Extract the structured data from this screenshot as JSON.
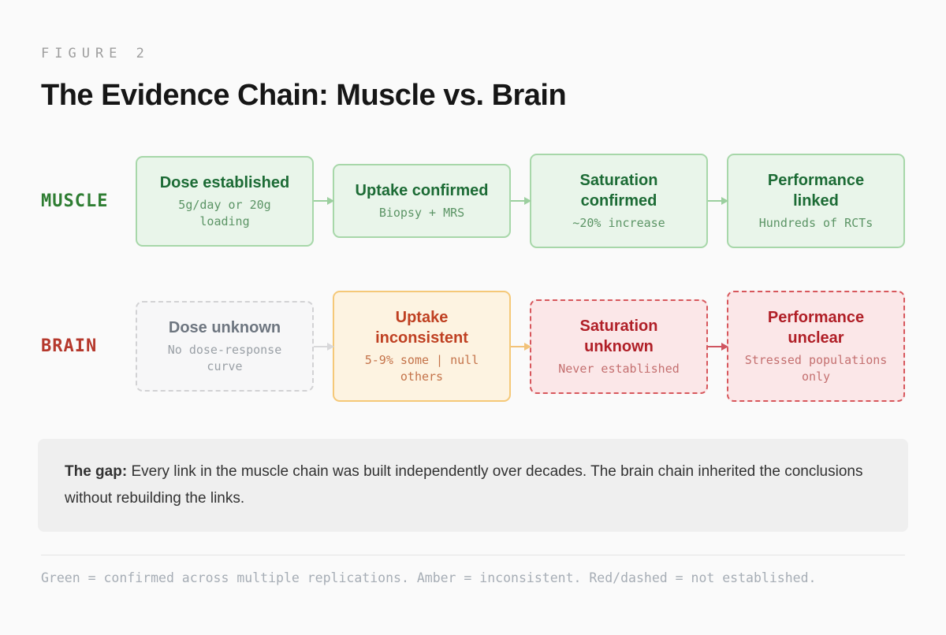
{
  "header": {
    "figure_label": "FIGURE 2",
    "title": "The Evidence Chain: Muscle vs. Brain"
  },
  "chains": [
    {
      "id": "muscle",
      "label": "MUSCLE",
      "boxes": [
        {
          "title": "Dose established",
          "subtitle": "5g/day or 20g\nloading",
          "state": "confirmed"
        },
        {
          "title": "Uptake confirmed",
          "subtitle": "Biopsy + MRS",
          "state": "confirmed"
        },
        {
          "title": "Saturation\nconfirmed",
          "subtitle": "~20% increase",
          "state": "confirmed"
        },
        {
          "title": "Performance\nlinked",
          "subtitle": "Hundreds of RCTs",
          "state": "confirmed"
        }
      ],
      "arrows": [
        "confirmed",
        "confirmed",
        "confirmed"
      ]
    },
    {
      "id": "brain",
      "label": "BRAIN",
      "boxes": [
        {
          "title": "Dose unknown",
          "subtitle": "No dose-response\ncurve",
          "state": "unknown"
        },
        {
          "title": "Uptake\ninconsistent",
          "subtitle": "5-9% some | null\nothers",
          "state": "inconsistent"
        },
        {
          "title": "Saturation\nunknown",
          "subtitle": "Never established",
          "state": "notestablished"
        },
        {
          "title": "Performance\nunclear",
          "subtitle": "Stressed populations\nonly",
          "state": "notestablished"
        }
      ],
      "arrows": [
        "unknown",
        "inconsistent",
        "notestablished"
      ]
    }
  ],
  "gap_note": {
    "lead": "The gap:",
    "text": " Every link in the muscle chain was built independently over decades. The brain chain inherited the conclusions without rebuilding the links."
  },
  "legend_text": "Green = confirmed across multiple replications. Amber = inconsistent. Red/dashed = not established.",
  "colors": {
    "page_bg": "#fafafa",
    "green_bg": "#e9f5ea",
    "green_border": "#a7d7a9",
    "green_title": "#1c6b35",
    "green_subtitle": "#5b9465",
    "green_arrow": "#9ccf9f",
    "gray_bg": "#f7f7f8",
    "gray_border": "#d2d2d4",
    "gray_title": "#6e7680",
    "gray_subtitle": "#9aa0a6",
    "gray_arrow": "#d8d8da",
    "amber_bg": "#fdf3e1",
    "amber_border": "#f5c878",
    "amber_title": "#bf4022",
    "amber_subtitle": "#c4734a",
    "amber_arrow": "#f2c279",
    "red_bg": "#fbe7e8",
    "red_border": "#d7575c",
    "red_title": "#b01f27",
    "red_subtitle": "#c47070",
    "red_arrow": "#cf5560",
    "muscle_label": "#2e7d32",
    "brain_label": "#b5382c",
    "note_bg": "#efefef",
    "note_text": "#323232",
    "figure_label": "#9e9e9e",
    "title": "#161616",
    "legend": "#a6adb5",
    "divider": "#e4e4e4"
  }
}
